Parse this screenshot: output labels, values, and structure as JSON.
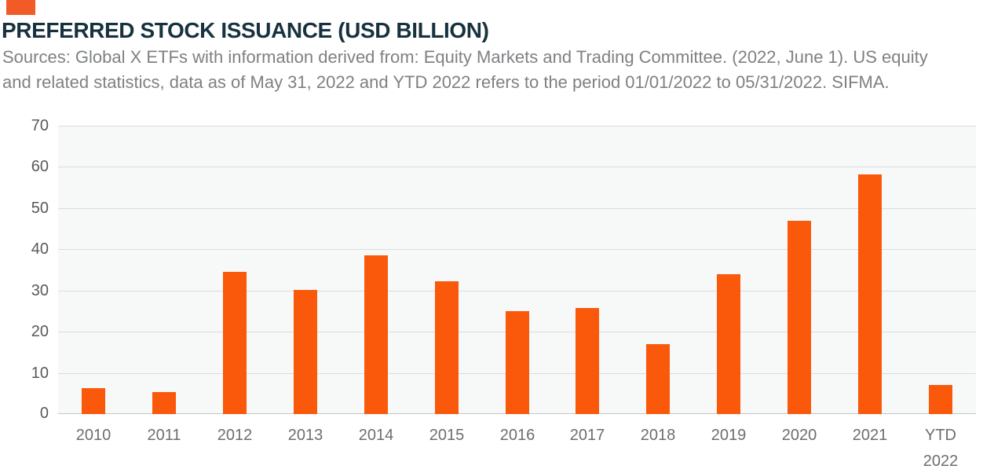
{
  "header": {
    "accent_square_color": "#F15B25",
    "source_lines": [
      "Sources: Global X ETFs with information derived from: Equity Markets and Trading Committee. (2022, June 1). US equity",
      "and related statistics, data as of May 31, 2022 and YTD 2022 refers to the period 01/01/2022 to 05/31/2022. SIFMA."
    ]
  },
  "chart_data": {
    "type": "bar",
    "title": "PREFERRED STOCK ISSUANCE (USD BILLION)",
    "categories": [
      "2010",
      "2011",
      "2012",
      "2013",
      "2014",
      "2015",
      "2016",
      "2017",
      "2018",
      "2019",
      "2020",
      "2021",
      "YTD 2022"
    ],
    "values": [
      6.3,
      5.4,
      34.5,
      30.1,
      38.6,
      32.2,
      24.9,
      25.8,
      17.0,
      34.0,
      46.9,
      58.2,
      7.1
    ],
    "xlabel": "",
    "ylabel": "",
    "ylim": [
      0,
      70
    ],
    "yticks": [
      0,
      10,
      20,
      30,
      40,
      50,
      60,
      70
    ],
    "grid": true,
    "legend": "none",
    "bar_color": "#FA580A",
    "gridline_color": "#DBDCDD",
    "baseline_color": "#C6C7C8",
    "plot_background": "#F7F8F8",
    "title_color": "#17323E",
    "source_text_color": "#7E8083",
    "ytick_color": "#58595B",
    "xtick_color": "#6D6E70"
  }
}
